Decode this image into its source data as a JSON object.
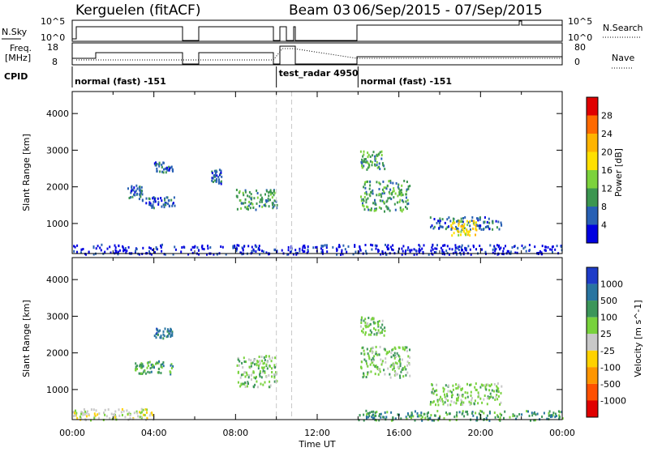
{
  "header": {
    "radar": "Kerguelen (fitACF)",
    "beam": "Beam 03",
    "dates": "06/Sep/2015 - 07/Sep/2015"
  },
  "summary": {
    "nsky_label": "N.Sky",
    "nsky_top": "10^5",
    "nsky_bottom": "10^0",
    "nsearch_label": "N.Search",
    "nsearch_top": "10^5",
    "nsearch_bottom": "10^0",
    "freq_label": "Freq.",
    "freq_unit": "[MHz]",
    "freq_top": "18",
    "freq_bottom": "8",
    "nave_label": "Nave",
    "nave_top": "80",
    "nave_bottom": "0",
    "cpid_label": "CPID",
    "cpid_segments": [
      {
        "label": "normal (fast) -151",
        "start": 0.0,
        "end": 10.75
      },
      {
        "label": "test_radar 4950",
        "start": 10.0,
        "end": 10.75
      },
      {
        "label": "normal (fast) -151",
        "start": 14.0,
        "end": 24.0
      }
    ]
  },
  "power_colorbar": {
    "label": "Power [dB]",
    "ticks": [
      "28",
      "24",
      "20",
      "16",
      "12",
      "8",
      "4"
    ],
    "colors": [
      "#e00000",
      "#ff6a00",
      "#ffb400",
      "#ffe000",
      "#7cd23c",
      "#3c9650",
      "#2860b4",
      "#0000e0"
    ]
  },
  "velocity_colorbar": {
    "label": "Velocity [m s^-1]",
    "ticks": [
      "1000",
      "500",
      "100",
      "25",
      "-25",
      "-100",
      "-500",
      "-1000"
    ],
    "colors": [
      "#1e3cc8",
      "#2874a0",
      "#3c965a",
      "#78d23c",
      "#c8c8c8",
      "#ffd200",
      "#ff9600",
      "#ff5000",
      "#e00000"
    ]
  },
  "chart_data": {
    "type": "heatmap",
    "xlabel": "Time UT",
    "ylabel": "Slant Range [km]",
    "x_ticks": [
      "00:00",
      "04:00",
      "08:00",
      "12:00",
      "16:00",
      "20:00",
      "00:00"
    ],
    "y_ticks": [
      "1000",
      "2000",
      "3000",
      "4000"
    ],
    "xlim_hours": [
      0,
      24
    ],
    "ylim_km": [
      180,
      4600
    ],
    "data_gaps_hours": [
      [
        5.3,
        6.1
      ],
      [
        10.75,
        14.0
      ]
    ],
    "power_blobs": [
      {
        "t0": 2.7,
        "t1": 3.4,
        "r0": 1700,
        "r1": 2100,
        "level": "8"
      },
      {
        "t0": 3.4,
        "t1": 5.0,
        "r0": 1450,
        "r1": 1750,
        "level": "8"
      },
      {
        "t0": 4.0,
        "t1": 4.9,
        "r0": 2400,
        "r1": 2700,
        "level": "8"
      },
      {
        "t0": 6.8,
        "t1": 7.3,
        "r0": 2100,
        "r1": 2500,
        "level": "8"
      },
      {
        "t0": 8.0,
        "t1": 10.0,
        "r0": 1400,
        "r1": 1950,
        "level": "12"
      },
      {
        "t0": 14.1,
        "t1": 15.3,
        "r0": 2500,
        "r1": 3000,
        "level": "12"
      },
      {
        "t0": 14.1,
        "t1": 16.5,
        "r0": 1350,
        "r1": 2200,
        "level": "12"
      },
      {
        "t0": 17.5,
        "t1": 21.0,
        "r0": 850,
        "r1": 1200,
        "level": "8"
      },
      {
        "t0": 18.5,
        "t1": 19.8,
        "r0": 700,
        "r1": 1100,
        "level": "20"
      },
      {
        "t0": 0.0,
        "t1": 24.0,
        "r0": 180,
        "r1": 450,
        "level": "4"
      }
    ],
    "velocity_blobs": [
      {
        "t0": 3.0,
        "t1": 5.0,
        "r0": 1450,
        "r1": 1800,
        "level": "100"
      },
      {
        "t0": 4.0,
        "t1": 4.9,
        "r0": 2400,
        "r1": 2700,
        "level": "500"
      },
      {
        "t0": 8.0,
        "t1": 10.0,
        "r0": 1100,
        "r1": 1950,
        "level": "25"
      },
      {
        "t0": 14.1,
        "t1": 16.5,
        "r0": 1350,
        "r1": 2200,
        "level": "25"
      },
      {
        "t0": 14.1,
        "t1": 15.3,
        "r0": 2500,
        "r1": 3000,
        "level": "25"
      },
      {
        "t0": 17.5,
        "t1": 21.0,
        "r0": 600,
        "r1": 1200,
        "level": "25"
      },
      {
        "t0": 0.0,
        "t1": 4.0,
        "r0": 180,
        "r1": 500,
        "level": "-25"
      },
      {
        "t0": 14.0,
        "t1": 24.0,
        "r0": 180,
        "r1": 450,
        "level": "100"
      }
    ]
  }
}
